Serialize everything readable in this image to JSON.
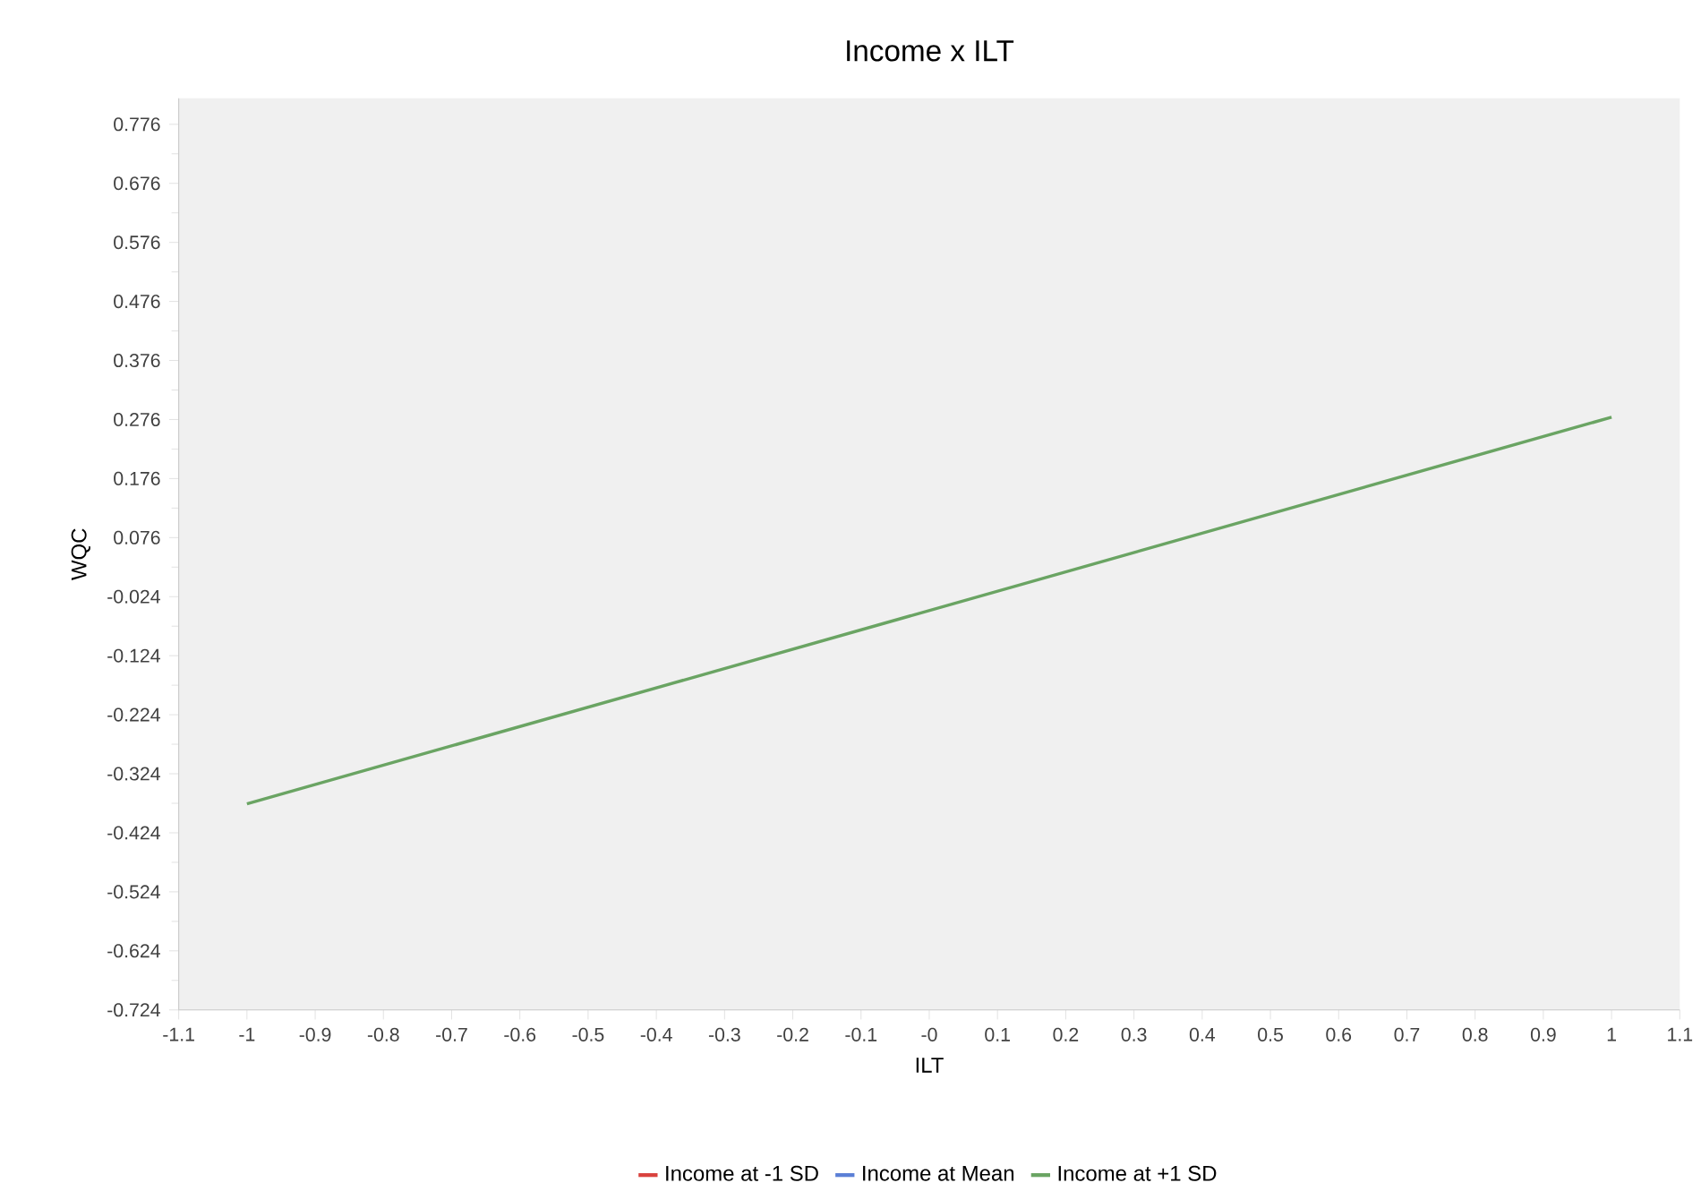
{
  "chart_data": {
    "type": "line",
    "title": "Income x ILT",
    "xlabel": "ILT",
    "ylabel": "WQC",
    "x": [
      -1,
      1
    ],
    "series": [
      {
        "name": "Income at -1 SD",
        "color": "#d9423e",
        "values": [
          null,
          null
        ]
      },
      {
        "name": "Income at Mean",
        "color": "#5b7fd6",
        "values": [
          null,
          null
        ]
      },
      {
        "name": "Income at +1 SD",
        "color": "#6aa463",
        "values": [
          -0.375,
          0.28
        ]
      }
    ],
    "xlim": [
      -1.1,
      1.1
    ],
    "ylim": [
      -0.724,
      0.82
    ],
    "xticks": [
      -1.1,
      -1,
      -0.9,
      -0.8,
      -0.7,
      -0.6,
      -0.5,
      -0.4,
      -0.3,
      -0.2,
      -0.1,
      {
        "value": 0,
        "label": "-0"
      },
      0.1,
      0.2,
      0.3,
      0.4,
      0.5,
      0.6,
      0.7,
      0.8,
      0.9,
      1,
      1.1
    ],
    "yticks": [
      -0.724,
      -0.624,
      -0.524,
      -0.424,
      -0.324,
      -0.224,
      -0.124,
      -0.024,
      0.076,
      0.176,
      0.276,
      0.376,
      0.476,
      0.576,
      0.676,
      0.776
    ],
    "legend": "bottom",
    "grid": false,
    "marker": "none",
    "line_style": "solid"
  }
}
